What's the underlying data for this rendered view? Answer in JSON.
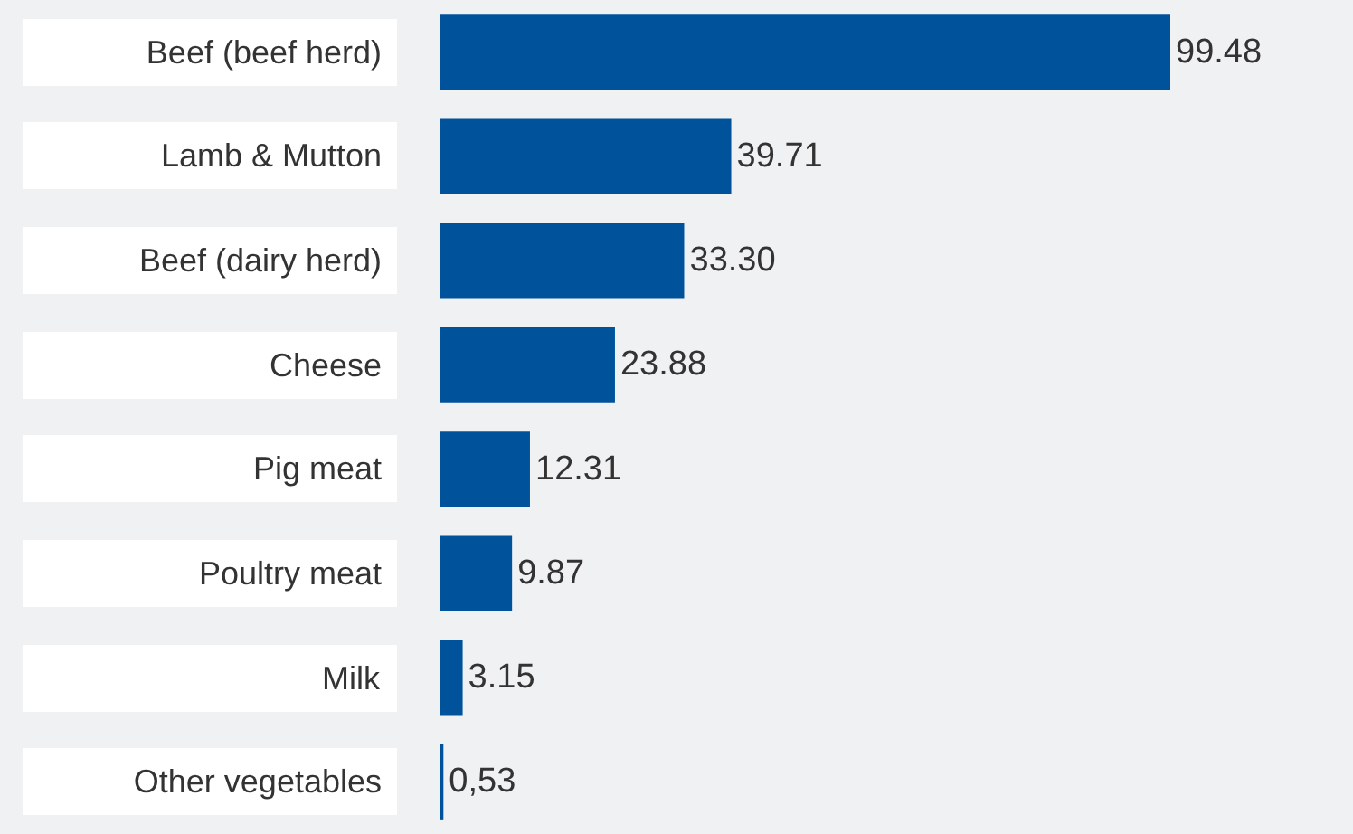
{
  "chart_data": {
    "type": "bar",
    "orientation": "horizontal",
    "categories": [
      "Beef (beef herd)",
      "Lamb & Mutton",
      "Beef (dairy herd)",
      "Cheese",
      "Pig meat",
      "Poultry meat",
      "Milk",
      "Other vegetables"
    ],
    "values": [
      99.48,
      39.71,
      33.3,
      23.88,
      12.31,
      9.87,
      3.15,
      0.53
    ],
    "value_labels": [
      "99.48",
      "39.71",
      "33.30",
      "23.88",
      "12.31",
      "9.87",
      "3.15",
      "0,53"
    ],
    "color": "#00529b"
  }
}
